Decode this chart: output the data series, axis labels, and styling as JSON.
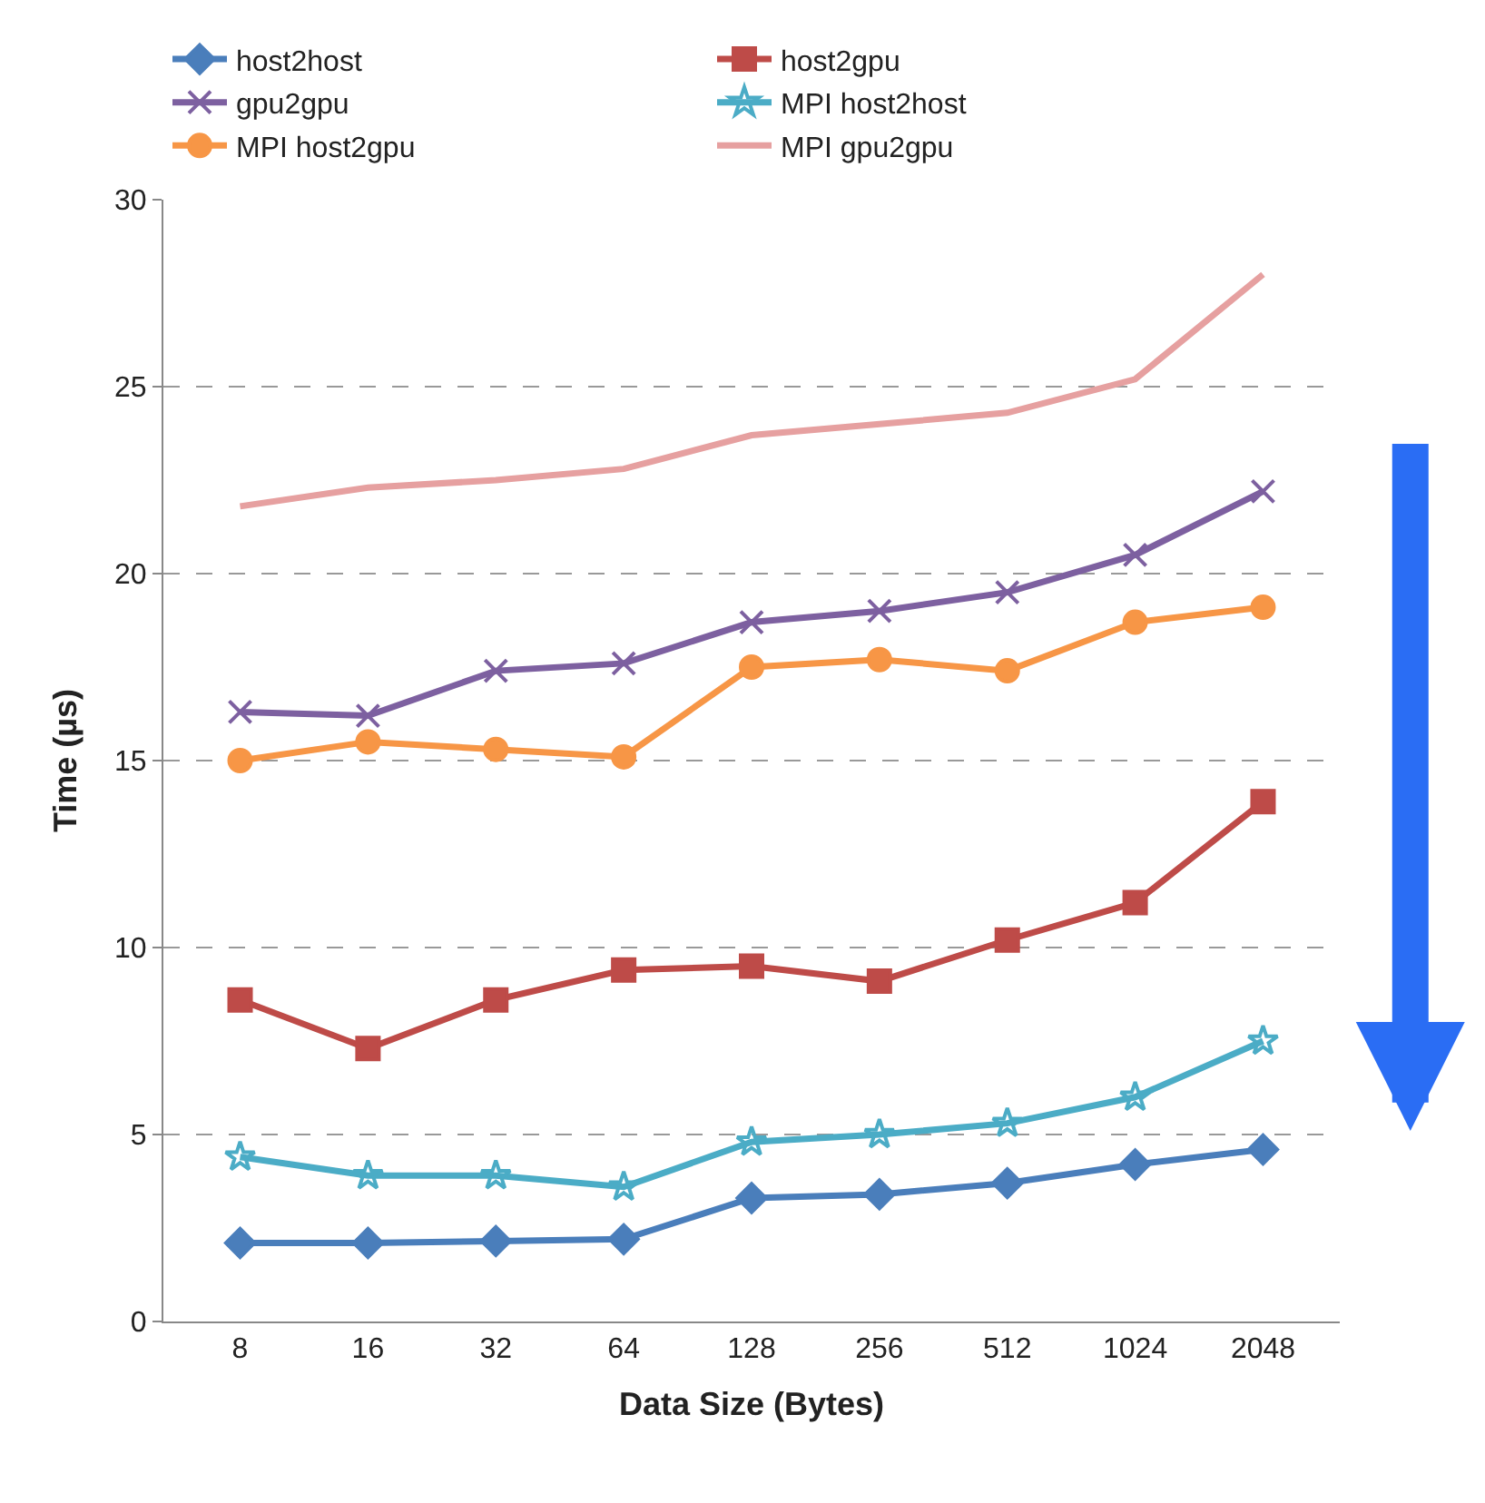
{
  "chart_data": {
    "type": "line",
    "xlabel": "Data Size (Bytes)",
    "ylabel": "Time (µs)",
    "categories": [
      "8",
      "16",
      "32",
      "64",
      "128",
      "256",
      "512",
      "1024",
      "2048"
    ],
    "series": [
      {
        "name": "host2host",
        "color": "#4a7ebb",
        "marker": "diamond",
        "values": [
          2.1,
          2.1,
          2.15,
          2.2,
          3.3,
          3.4,
          3.7,
          4.2,
          4.6
        ]
      },
      {
        "name": "host2gpu",
        "color": "#be4b48",
        "marker": "square",
        "values": [
          8.6,
          7.3,
          8.6,
          9.4,
          9.5,
          9.1,
          10.2,
          11.2,
          13.9
        ]
      },
      {
        "name": "gpu2gpu",
        "color": "#7d60a0",
        "marker": "cross",
        "values": [
          16.3,
          16.2,
          17.4,
          17.6,
          18.7,
          19.0,
          19.5,
          20.5,
          22.2
        ]
      },
      {
        "name": "MPI host2host",
        "color": "#4bacc6",
        "marker": "star",
        "values": [
          4.4,
          3.9,
          3.9,
          3.6,
          4.8,
          5.0,
          5.3,
          6.0,
          7.5
        ]
      },
      {
        "name": "MPI host2gpu",
        "color": "#f79646",
        "marker": "circle",
        "values": [
          15.0,
          15.5,
          15.3,
          15.1,
          17.5,
          17.7,
          17.4,
          18.7,
          19.1
        ]
      },
      {
        "name": "MPI gpu2gpu",
        "color": "#e6a0a0",
        "marker": "none",
        "values": [
          21.8,
          22.3,
          22.5,
          22.8,
          23.7,
          24.0,
          24.3,
          25.2,
          28.0
        ]
      }
    ],
    "ylim": [
      0,
      30
    ],
    "yticks": [
      0,
      5,
      10,
      15,
      20,
      25,
      30
    ],
    "grid": "y",
    "legend": "top",
    "line_style": "solid"
  }
}
